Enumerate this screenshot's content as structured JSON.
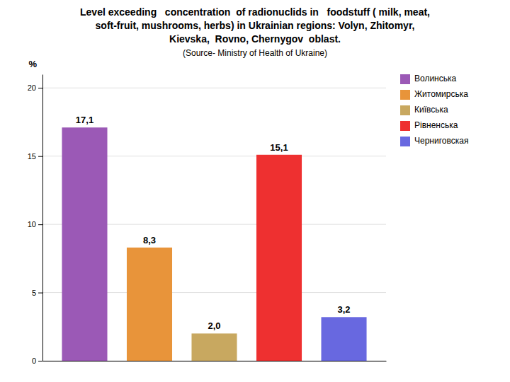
{
  "chart_data": {
    "type": "bar",
    "title": [
      "Level exceeding   concentration  of radionuclids in   foodstuff ( milk, meat,",
      "soft-fruit, mushrooms, herbs) in Ukrainian regions: Volyn, Zhitomyr,",
      "Kievska,  Rovno, Chernygov  oblast."
    ],
    "subtitle": "(Source- Ministry of Health of Ukraine)",
    "ylabel": "%",
    "categories": [
      "Волинська",
      "Житомирська",
      "Київська",
      "Рівненська",
      "Черниговская"
    ],
    "values": [
      17.1,
      8.3,
      2.0,
      15.1,
      3.2
    ],
    "value_labels": [
      "17,1",
      "8,3",
      "2,0",
      "15,1",
      "3,2"
    ],
    "data_labels": true,
    "colors": [
      "#9B59B6",
      "#E8943A",
      "#C8A860",
      "#EE3030",
      "#6868E0"
    ],
    "ylim": [
      0,
      21
    ],
    "yticks": [
      0,
      5,
      10,
      15,
      20
    ],
    "grid": true,
    "legend": "upper right",
    "tick_labels": "y"
  }
}
